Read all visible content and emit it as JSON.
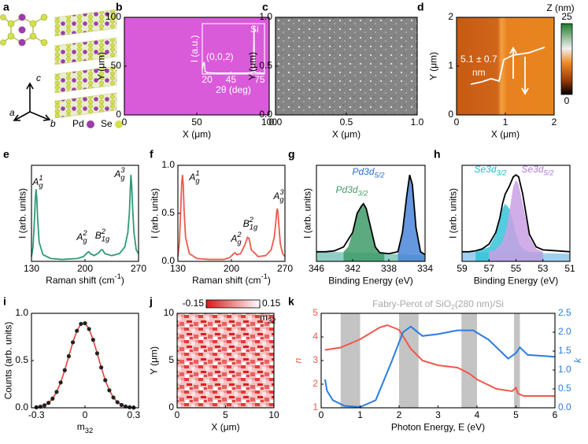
{
  "illustration": {
    "panel": "a",
    "axes": [
      "c",
      "a",
      "b"
    ],
    "elements": [
      {
        "name": "Pd",
        "color": "#9b3fa8"
      },
      {
        "name": "Se",
        "color": "#d4e04a"
      }
    ]
  },
  "chart_data": [
    {
      "type": "image",
      "panel": "b",
      "color": "#d95bd9",
      "xlabel": "X (μm)",
      "ylabel": "Y (μm)",
      "xlim": [
        0,
        100
      ],
      "ylim": [
        0,
        100
      ],
      "xticks": [
        0,
        50,
        100
      ],
      "yticks": [
        0,
        50,
        100
      ],
      "inset": {
        "type": "line",
        "xlabel": "2θ (deg)",
        "ylabel": "I (a.u.)",
        "xlim": [
          15,
          80
        ],
        "ylim": [
          0,
          1.05
        ],
        "xticks": [
          20,
          45,
          75
        ],
        "annotations": [
          "(0,0,2)",
          "Si"
        ],
        "series": [
          {
            "color": "#ffffff",
            "x": [
              15,
              16,
              17,
              17.5,
              18,
              20,
              30,
              45,
              60,
              68,
              68.8,
              69,
              69.3,
              70,
              75,
              80
            ],
            "values": [
              0.1,
              0.2,
              0.25,
              0.15,
              0.05,
              0.03,
              0.02,
              0.02,
              0.02,
              0.03,
              0.6,
              1,
              0.5,
              0.03,
              0.02,
              0.02
            ]
          }
        ]
      }
    },
    {
      "type": "image",
      "panel": "c",
      "xlabel": "X (μm)",
      "ylabel": "Y (μm)",
      "xlim": [
        0,
        1
      ],
      "ylim": [
        0,
        1
      ],
      "xticks": [
        {
          "value": 0,
          "label": "0.0"
        },
        {
          "value": 0.5,
          "label": "0.5"
        },
        {
          "value": 1,
          "label": "1.0"
        }
      ],
      "yticks": [
        {
          "value": 0,
          "label": "0.0"
        },
        {
          "value": 0.5,
          "label": "0.5"
        },
        {
          "value": 1,
          "label": "1.0"
        }
      ]
    },
    {
      "type": "image",
      "panel": "d",
      "xlabel": "X (μm)",
      "ylabel": "Y (μm)",
      "xlim": [
        0,
        2
      ],
      "ylim": [
        0,
        2
      ],
      "xticks": [
        0,
        1,
        2
      ],
      "yticks": [
        0,
        1,
        2
      ],
      "colorbar": {
        "label": "Z (nm)",
        "lim": [
          0,
          25
        ],
        "ticks": [
          0,
          25
        ]
      },
      "annotations": [
        "5.1 ± 0.7",
        "nm"
      ]
    },
    {
      "type": "line",
      "panel": "e",
      "xlabel": [
        {
          "text": "Raman shift (cm"
        },
        {
          "text": "-1",
          "pos": "sup"
        },
        {
          "text": ")"
        }
      ],
      "ylabel": "I (arb. units)",
      "xlim": [
        130,
        270
      ],
      "ylim": [
        0,
        1
      ],
      "xticks": [
        130,
        200,
        270
      ],
      "series": [
        {
          "color": "#2f9a76",
          "x": [
            130,
            132,
            134,
            135,
            136,
            137,
            138,
            140,
            145,
            155,
            170,
            190,
            198,
            203,
            205,
            207,
            212,
            218,
            221,
            223,
            226,
            235,
            245,
            252,
            256,
            258,
            259,
            260,
            261,
            262,
            264,
            267,
            270
          ],
          "values": [
            0.05,
            0.15,
            0.45,
            0.65,
            0.75,
            0.65,
            0.45,
            0.2,
            0.07,
            0.03,
            0.02,
            0.03,
            0.05,
            0.09,
            0.1,
            0.08,
            0.06,
            0.09,
            0.12,
            0.12,
            0.08,
            0.06,
            0.08,
            0.15,
            0.3,
            0.5,
            0.7,
            0.9,
            0.8,
            0.6,
            0.3,
            0.12,
            0.08
          ]
        }
      ],
      "labels": [
        [
          {
            "text": "A"
          },
          {
            "text": "g",
            "pos": "sub"
          },
          {
            "text": "1",
            "pos": "sup"
          }
        ],
        [
          {
            "text": "A"
          },
          {
            "text": "g",
            "pos": "sub"
          },
          {
            "text": "2",
            "pos": "sup"
          }
        ],
        [
          {
            "text": "B"
          },
          {
            "text": "1g",
            "pos": "sub"
          },
          {
            "text": "2",
            "pos": "sup"
          }
        ],
        [
          {
            "text": "A"
          },
          {
            "text": "g",
            "pos": "sub"
          },
          {
            "text": "3",
            "pos": "sup"
          }
        ]
      ]
    },
    {
      "type": "line",
      "panel": "f",
      "xlabel": [
        {
          "text": "Raman shift (cm"
        },
        {
          "text": "-1",
          "pos": "sup"
        },
        {
          "text": ")"
        }
      ],
      "ylabel": "I (arb. units)",
      "xlim": [
        130,
        270
      ],
      "ylim": [
        0,
        1
      ],
      "xticks": [
        130,
        200,
        270
      ],
      "yticks": [
        {
          "value": 0,
          "label": "0.0"
        },
        {
          "value": 0.5,
          "label": "0.5"
        },
        {
          "value": 1,
          "label": "1.0"
        }
      ],
      "series": [
        {
          "color": "#f0584a",
          "x": [
            130,
            132,
            134,
            135,
            136,
            137,
            138,
            140,
            145,
            155,
            170,
            190,
            198,
            203,
            205,
            207,
            212,
            218,
            221,
            223,
            226,
            235,
            245,
            252,
            256,
            258,
            259,
            260,
            261,
            262,
            264,
            267,
            270
          ],
          "values": [
            0.05,
            0.2,
            0.6,
            0.82,
            0.9,
            0.8,
            0.55,
            0.25,
            0.08,
            0.03,
            0.02,
            0.02,
            0.04,
            0.08,
            0.09,
            0.07,
            0.08,
            0.18,
            0.25,
            0.24,
            0.12,
            0.05,
            0.06,
            0.12,
            0.25,
            0.4,
            0.5,
            0.55,
            0.5,
            0.38,
            0.18,
            0.08,
            0.05
          ]
        }
      ],
      "labels": [
        [
          {
            "text": "A"
          },
          {
            "text": "g",
            "pos": "sub"
          },
          {
            "text": "1",
            "pos": "sup"
          }
        ],
        [
          {
            "text": "A"
          },
          {
            "text": "g",
            "pos": "sub"
          },
          {
            "text": "2",
            "pos": "sup"
          }
        ],
        [
          {
            "text": "B"
          },
          {
            "text": "1g",
            "pos": "sub"
          },
          {
            "text": "2",
            "pos": "sup"
          }
        ],
        [
          {
            "text": "A"
          },
          {
            "text": "g",
            "pos": "sub"
          },
          {
            "text": "3",
            "pos": "sup"
          }
        ]
      ]
    },
    {
      "type": "line",
      "panel": "g",
      "xlabel": "Binding Energy (eV)",
      "ylabel": "I (arb. units)",
      "xlim": [
        346,
        334
      ],
      "ylim": [
        0,
        1
      ],
      "xticks": [
        346,
        342,
        338,
        334
      ],
      "series": [
        {
          "color": "#7cc7b8",
          "fill": true,
          "x": [
            346,
            340,
            334
          ],
          "values": [
            0.1,
            0.09,
            0.06
          ]
        },
        {
          "color": "#3f9b6a",
          "fill": true,
          "x": [
            343,
            342.5,
            342,
            341.5,
            341,
            340.8,
            340.5,
            340,
            339.5,
            339,
            338.5
          ],
          "values": [
            0.1,
            0.15,
            0.3,
            0.5,
            0.58,
            0.6,
            0.55,
            0.35,
            0.15,
            0.09,
            0.08
          ]
        },
        {
          "color": "#4a86d8",
          "fill": true,
          "x": [
            337,
            336.5,
            336,
            335.7,
            335.4,
            335,
            334.5,
            334
          ],
          "values": [
            0.08,
            0.3,
            0.7,
            0.9,
            0.8,
            0.35,
            0.1,
            0.07
          ]
        },
        {
          "color": "#000000",
          "x": [
            346,
            345,
            344,
            343,
            342,
            341.5,
            341,
            340.8,
            340.5,
            340,
            339.5,
            339,
            338,
            337,
            336.5,
            336,
            335.7,
            335.4,
            335,
            334.5,
            334
          ],
          "values": [
            0.1,
            0.1,
            0.11,
            0.15,
            0.3,
            0.5,
            0.58,
            0.6,
            0.55,
            0.35,
            0.15,
            0.09,
            0.08,
            0.1,
            0.3,
            0.7,
            0.9,
            0.8,
            0.35,
            0.1,
            0.07
          ]
        }
      ],
      "labels": [
        [
          {
            "text": "Pd3d"
          },
          {
            "text": "5/2",
            "pos": "sub"
          }
        ],
        [
          {
            "text": "Pd3d"
          },
          {
            "text": "3/2",
            "pos": "sub"
          }
        ]
      ],
      "label_colors": [
        "#2a6fd0",
        "#3f9b6a"
      ]
    },
    {
      "type": "line",
      "panel": "h",
      "xlabel": "Binding Energy (eV)",
      "ylabel": "I (arb. units)",
      "xlim": [
        59,
        51
      ],
      "ylim": [
        0,
        1
      ],
      "xticks": [
        59,
        57,
        55,
        53,
        51
      ],
      "series": [
        {
          "color": "#8fc8ee",
          "fill": true,
          "x": [
            59,
            51
          ],
          "values": [
            0.1,
            0.08
          ]
        },
        {
          "color": "#35c3d8",
          "fill": true,
          "x": [
            58,
            57,
            56.5,
            56.2,
            56,
            55.8,
            55.5,
            55.2,
            55,
            54.7,
            54.4,
            54,
            53
          ],
          "values": [
            0.1,
            0.15,
            0.28,
            0.42,
            0.55,
            0.6,
            0.55,
            0.4,
            0.28,
            0.17,
            0.12,
            0.1,
            0.09
          ]
        },
        {
          "color": "#c9a0e4",
          "fill": true,
          "x": [
            57,
            56.5,
            56,
            55.7,
            55.4,
            55.2,
            55,
            54.8,
            54.5,
            54.2,
            54,
            53.5,
            53
          ],
          "values": [
            0.1,
            0.12,
            0.2,
            0.35,
            0.6,
            0.78,
            0.85,
            0.8,
            0.6,
            0.4,
            0.25,
            0.13,
            0.1
          ]
        },
        {
          "color": "#000000",
          "x": [
            59,
            58.5,
            58,
            57.5,
            57,
            56.5,
            56.2,
            56,
            55.8,
            55.5,
            55.2,
            55,
            54.8,
            54.5,
            54.2,
            54,
            53.5,
            53,
            52,
            51
          ],
          "values": [
            0.1,
            0.1,
            0.11,
            0.13,
            0.18,
            0.3,
            0.45,
            0.6,
            0.7,
            0.78,
            0.88,
            0.9,
            0.88,
            0.7,
            0.45,
            0.28,
            0.15,
            0.12,
            0.11,
            0.1
          ]
        }
      ],
      "labels": [
        [
          {
            "text": "Se3d"
          },
          {
            "text": "3/2",
            "pos": "sub"
          }
        ],
        [
          {
            "text": "Se3d"
          },
          {
            "text": "5/2",
            "pos": "sub"
          }
        ]
      ],
      "label_colors": [
        "#1fb8cc",
        "#b07ad8"
      ]
    },
    {
      "type": "scatter",
      "panel": "i",
      "xlabel": [
        {
          "text": "m"
        },
        {
          "text": "32",
          "pos": "sub"
        }
      ],
      "ylabel": "Counts (arb. units)",
      "xlim": [
        -0.33,
        0.33
      ],
      "ylim": [
        0,
        1
      ],
      "xticks": [
        -0.3,
        0,
        0.3
      ],
      "yticks": [
        {
          "value": 0,
          "label": "0.0"
        },
        {
          "value": 0.5,
          "label": "0.5"
        },
        {
          "value": 1,
          "label": "1.0"
        }
      ],
      "line_color": "#e8403a",
      "series": [
        {
          "color": "#222222",
          "x": [
            -0.3,
            -0.275,
            -0.25,
            -0.225,
            -0.2,
            -0.175,
            -0.15,
            -0.125,
            -0.1,
            -0.075,
            -0.05,
            -0.025,
            0,
            0.025,
            0.05,
            0.075,
            0.1,
            0.125,
            0.15,
            0.175,
            0.2,
            0.225,
            0.25,
            0.275,
            0.3
          ],
          "values": [
            0.005,
            0.012,
            0.026,
            0.052,
            0.097,
            0.168,
            0.268,
            0.398,
            0.546,
            0.693,
            0.815,
            0.888,
            0.895,
            0.834,
            0.72,
            0.576,
            0.427,
            0.292,
            0.185,
            0.109,
            0.059,
            0.03,
            0.014,
            0.006,
            0.002
          ]
        }
      ]
    },
    {
      "type": "image",
      "panel": "j",
      "xlabel": "X (μm)",
      "ylabel": "Y (μm)",
      "xlim": [
        0,
        10
      ],
      "ylim": [
        0,
        10
      ],
      "xticks": [
        0,
        5,
        10
      ],
      "yticks": [
        0,
        5,
        10
      ],
      "colorbar": {
        "label": [
          {
            "text": "m"
          },
          {
            "text": "32",
            "pos": "sub"
          }
        ],
        "lim": [
          -0.15,
          0.15
        ],
        "ticks": [
          -0.15,
          0.15
        ]
      }
    },
    {
      "type": "dual_line",
      "panel": "k",
      "xlabel": "Photon Energy, E (eV)",
      "ylabel": "n",
      "y2label": "k",
      "xlim": [
        0,
        6
      ],
      "ylim": [
        1,
        5
      ],
      "y2lim": [
        0,
        2.5
      ],
      "xticks": [
        0,
        1,
        2,
        3,
        4,
        5,
        6
      ],
      "yticks": [
        1,
        2,
        3,
        4,
        5
      ],
      "y2ticks": [
        {
          "value": 0,
          "label": "0.0"
        },
        {
          "value": 0.5,
          "label": "0.5"
        },
        {
          "value": 1,
          "label": "1.0"
        },
        {
          "value": 1.5,
          "label": "1.5"
        },
        {
          "value": 2,
          "label": "2.0"
        },
        {
          "value": 2.5,
          "label": "2.5"
        }
      ],
      "annotation": [
        {
          "text": "Fabry-Perot of SiO"
        },
        {
          "text": "2",
          "pos": "sub"
        },
        {
          "text": "(280 nm)/Si"
        }
      ],
      "bands": [
        [
          0.5,
          1
        ],
        [
          2,
          2.5
        ],
        [
          3.6,
          4
        ],
        [
          4.95,
          5.1
        ]
      ],
      "band_color": "#c4c4c4",
      "series": [
        {
          "color": "#f0584a",
          "x": [
            0.1,
            0.5,
            1,
            1.5,
            1.7,
            2,
            2.3,
            2.6,
            3,
            3.5,
            3.8,
            4,
            4.5,
            4.9,
            5,
            5.05,
            5.2,
            6
          ],
          "values": [
            3.45,
            3.55,
            3.9,
            4.4,
            4.5,
            4.3,
            3.5,
            3.0,
            2.8,
            2.7,
            2.45,
            2.2,
            1.8,
            1.7,
            1.85,
            1.6,
            1.5,
            1.5
          ]
        },
        {
          "color": "#2a7de1",
          "axis": "y2",
          "x": [
            0.1,
            0.15,
            0.3,
            0.6,
            1,
            1.4,
            1.8,
            2.1,
            2.3,
            2.6,
            3,
            3.5,
            3.9,
            4.3,
            4.8,
            5,
            5.1,
            5.3,
            6
          ],
          "values": [
            0.75,
            0.45,
            0.2,
            0.05,
            0.02,
            0.2,
            1.2,
            2.0,
            2.15,
            1.9,
            1.95,
            2.05,
            2.05,
            1.8,
            1.3,
            1.45,
            1.6,
            1.4,
            1.35
          ]
        }
      ]
    }
  ]
}
